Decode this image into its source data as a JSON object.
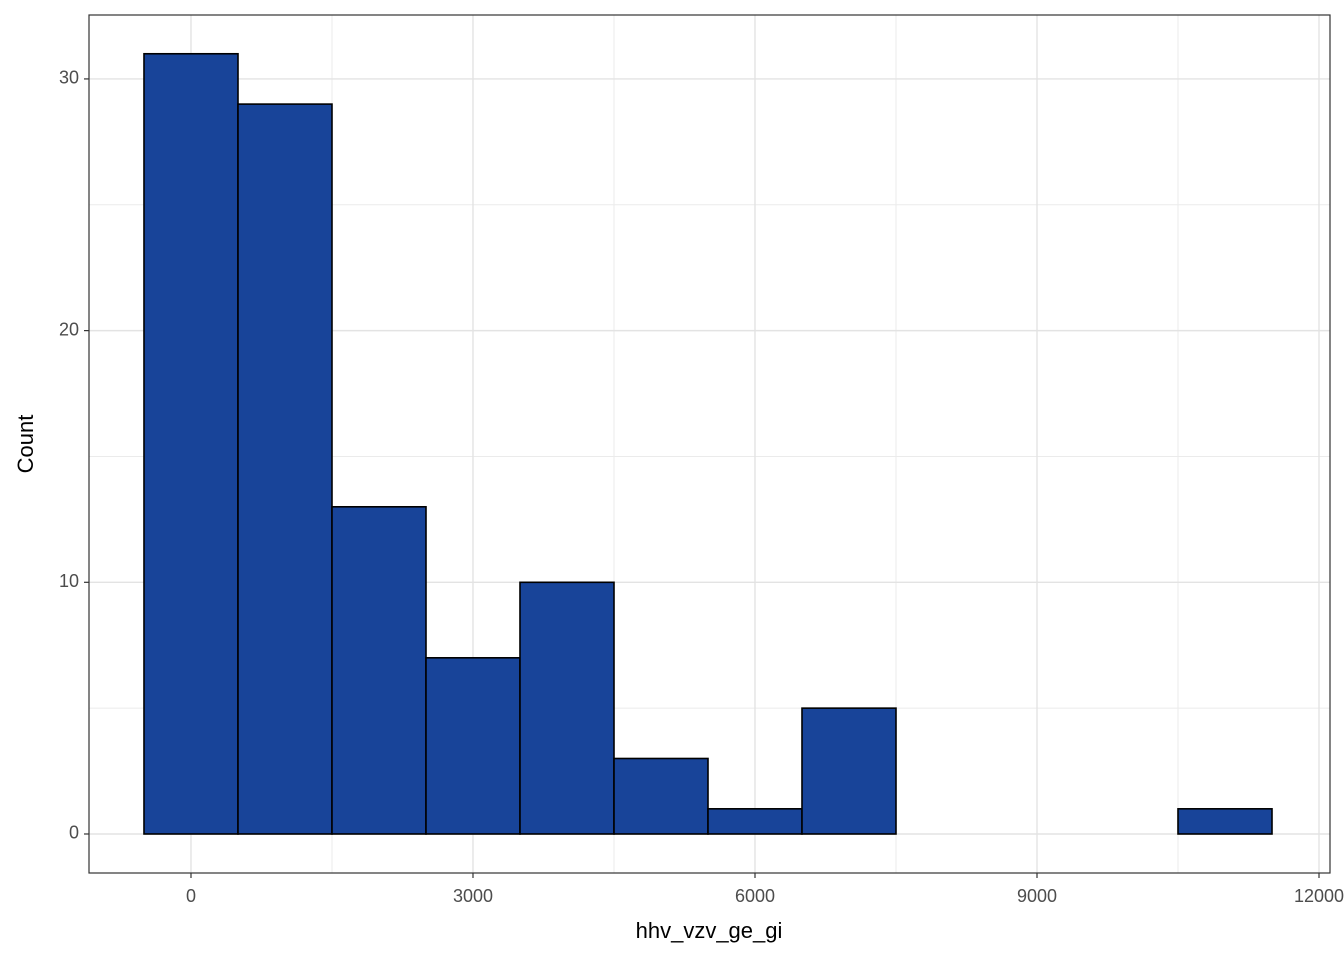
{
  "chart_data": {
    "type": "histogram",
    "x_label": "hhv_vzv_ge_gi",
    "y_label": "Count",
    "bins": [
      -500,
      500,
      1500,
      2500,
      3500,
      4500,
      5500,
      6500,
      7500,
      8500,
      9500,
      10500,
      11500
    ],
    "values": [
      31,
      29,
      13,
      7,
      10,
      3,
      1,
      5,
      0,
      0,
      0,
      1
    ],
    "color": "#184499",
    "edgecolor": "#000000",
    "xlim": [
      -1085,
      12117
    ],
    "ylim": [
      -1.55,
      32.54
    ],
    "xticks": [
      0,
      3000,
      6000,
      9000,
      12000
    ],
    "yticks": [
      0,
      10,
      20,
      30
    ],
    "grid": true
  }
}
